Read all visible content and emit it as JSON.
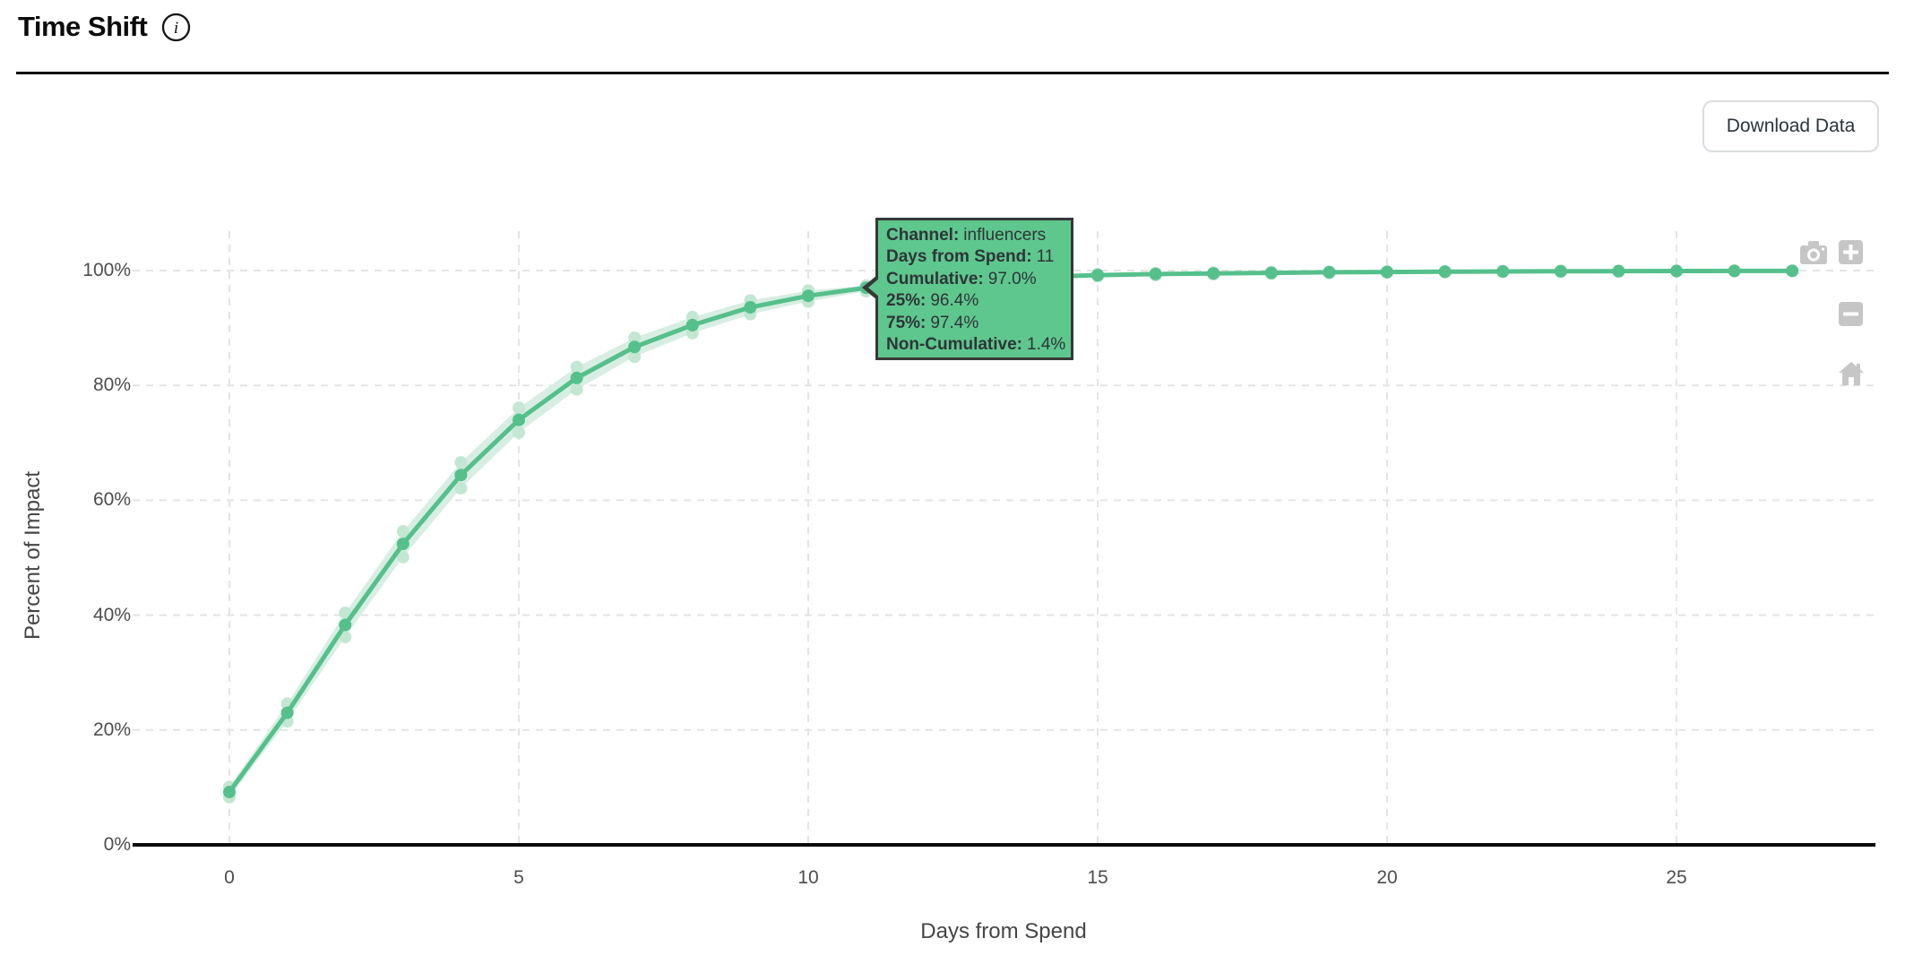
{
  "header": {
    "title": "Time Shift"
  },
  "toolbar": {
    "download_label": "Download Data"
  },
  "tooltip": {
    "bg_color": "#5ec78e",
    "border_color": "#373737",
    "rows": [
      {
        "label": "Channel:",
        "value": "influencers"
      },
      {
        "label": "Days from Spend:",
        "value": "11"
      },
      {
        "label": "Cumulative:",
        "value": "97.0%"
      },
      {
        "label": "25%:",
        "value": "96.4%"
      },
      {
        "label": "75%:",
        "value": "97.4%"
      },
      {
        "label": "Non-Cumulative:",
        "value": "1.4%"
      }
    ]
  },
  "modebar": {
    "icons": [
      "camera-icon",
      "zoom-in-icon",
      "zoom-out-icon",
      "home-icon"
    ]
  },
  "chart_data": {
    "type": "line",
    "title": "Time Shift",
    "xlabel": "Days from Spend",
    "ylabel": "Percent of Impact",
    "x": [
      0,
      1,
      2,
      3,
      4,
      5,
      6,
      7,
      8,
      9,
      10,
      11,
      12,
      13,
      14,
      15,
      16,
      17,
      18,
      19,
      20,
      21,
      22,
      23,
      24,
      25,
      26,
      27
    ],
    "series": [
      {
        "name": "Cumulative",
        "values": [
          9.2,
          23.0,
          38.3,
          52.4,
          64.4,
          74.0,
          81.3,
          86.7,
          90.5,
          93.6,
          95.6,
          97.0,
          97.9,
          98.5,
          98.9,
          99.2,
          99.4,
          99.5,
          99.6,
          99.7,
          99.75,
          99.8,
          99.85,
          99.88,
          99.9,
          99.92,
          99.94,
          99.95
        ]
      },
      {
        "name": "25%",
        "values": [
          8.3,
          21.5,
          36.2,
          50.1,
          62.1,
          71.8,
          79.3,
          85.0,
          89.1,
          92.4,
          94.6,
          96.4,
          97.4,
          98.1,
          98.6,
          99.0,
          99.2,
          99.35,
          99.45,
          99.55,
          99.63,
          99.7,
          99.76,
          99.8,
          99.84,
          99.87,
          99.9,
          99.92
        ]
      },
      {
        "name": "75%",
        "values": [
          10.1,
          24.6,
          40.4,
          54.6,
          66.6,
          76.1,
          83.2,
          88.3,
          91.9,
          94.8,
          96.5,
          97.4,
          98.4,
          98.9,
          99.2,
          99.4,
          99.55,
          99.65,
          99.75,
          99.8,
          99.85,
          99.89,
          99.92,
          99.94,
          99.96,
          99.97,
          99.98,
          99.99
        ]
      }
    ],
    "highlighted_point": {
      "x": 11,
      "cumulative": 97.0,
      "p25": 96.4,
      "p75": 97.4,
      "non_cumulative": 1.4
    },
    "xticks": [
      0,
      5,
      10,
      15,
      20,
      25
    ],
    "yticks": [
      0,
      20,
      40,
      60,
      80,
      100
    ],
    "ytick_suffix": "%",
    "xlim": [
      -1.7,
      28.6
    ],
    "ylim": [
      0,
      100
    ],
    "grid": true,
    "legend": "none",
    "colors": {
      "line": "#55c08b",
      "marker": "#55c08b",
      "band": "#d8eee2",
      "band_marker": "#c3e7d2",
      "grid": "#e4e4e4",
      "axis_line": "#0b0b0b",
      "tick_text": "#4d4d4d"
    }
  }
}
